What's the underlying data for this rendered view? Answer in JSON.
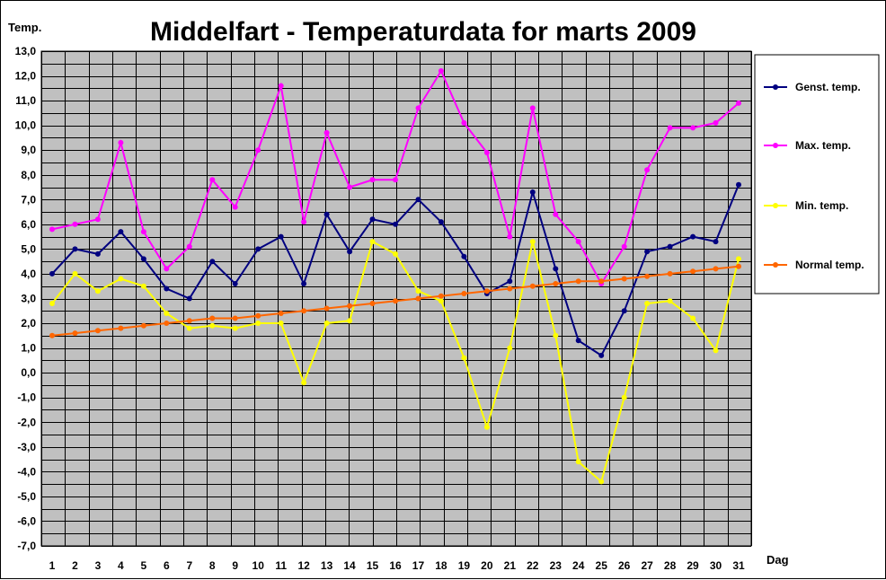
{
  "chart_data": {
    "type": "line",
    "title": "Middelfart - Temperaturdata for marts 2009",
    "ylabel": "Temp.",
    "xlabel": "Dag",
    "ylim": [
      -7,
      13
    ],
    "y_tick_step": 1,
    "y_tick_labels": [
      "13,0",
      "12,0",
      "11,0",
      "10,0",
      "9,0",
      "8,0",
      "7,0",
      "6,0",
      "5,0",
      "4,0",
      "3,0",
      "2,0",
      "1,0",
      "0,0",
      "-1,0",
      "-2,0",
      "-3,0",
      "-4,0",
      "-5,0",
      "-6,0",
      "-7,0"
    ],
    "x": [
      1,
      2,
      3,
      4,
      5,
      6,
      7,
      8,
      9,
      10,
      11,
      12,
      13,
      14,
      15,
      16,
      17,
      18,
      19,
      20,
      21,
      22,
      23,
      24,
      25,
      26,
      27,
      28,
      29,
      30,
      31
    ],
    "x_tick_labels": [
      "1",
      "2",
      "3",
      "4",
      "5",
      "6",
      "7",
      "8",
      "9",
      "10",
      "11",
      "12",
      "13",
      "14",
      "15",
      "16",
      "17",
      "18",
      "19",
      "20",
      "21",
      "22",
      "23",
      "24",
      "25",
      "26",
      "27",
      "28",
      "29",
      "30",
      "31"
    ],
    "grid": true,
    "plot_background": "#c0c0c0",
    "legend_position": "right",
    "series": [
      {
        "name": "Genst. temp.",
        "color": "#000080",
        "values": [
          4.0,
          5.0,
          4.8,
          5.7,
          4.6,
          3.4,
          3.0,
          4.5,
          3.6,
          5.0,
          5.5,
          3.6,
          6.4,
          4.9,
          6.2,
          6.0,
          7.0,
          6.1,
          4.7,
          3.2,
          3.7,
          7.3,
          4.2,
          1.3,
          0.7,
          2.5,
          4.9,
          5.1,
          5.5,
          5.3,
          7.6
        ]
      },
      {
        "name": "Max. temp.",
        "color": "#ff00ff",
        "values": [
          5.8,
          6.0,
          6.2,
          9.3,
          5.7,
          4.2,
          5.1,
          7.8,
          6.7,
          9.0,
          11.6,
          6.1,
          9.7,
          7.5,
          7.8,
          7.8,
          10.7,
          12.2,
          10.1,
          8.9,
          5.5,
          10.7,
          6.4,
          5.3,
          3.6,
          5.1,
          8.2,
          9.9,
          9.9,
          10.1,
          10.9
        ]
      },
      {
        "name": "Min. temp.",
        "color": "#ffff00",
        "values": [
          2.8,
          4.0,
          3.3,
          3.8,
          3.5,
          2.4,
          1.8,
          1.9,
          1.8,
          2.0,
          2.0,
          -0.4,
          2.0,
          2.1,
          5.3,
          4.8,
          3.3,
          2.9,
          0.6,
          -2.2,
          1.0,
          5.3,
          1.5,
          -3.6,
          -4.4,
          -1.0,
          2.8,
          2.9,
          2.2,
          0.9,
          4.6
        ]
      },
      {
        "name": "Normal temp.",
        "color": "#ff6600",
        "values": [
          1.5,
          1.6,
          1.7,
          1.8,
          1.9,
          2.0,
          2.1,
          2.2,
          2.2,
          2.3,
          2.4,
          2.5,
          2.6,
          2.7,
          2.8,
          2.9,
          3.0,
          3.1,
          3.2,
          3.3,
          3.4,
          3.5,
          3.6,
          3.7,
          3.7,
          3.8,
          3.9,
          4.0,
          4.1,
          4.2,
          4.3
        ]
      }
    ]
  }
}
